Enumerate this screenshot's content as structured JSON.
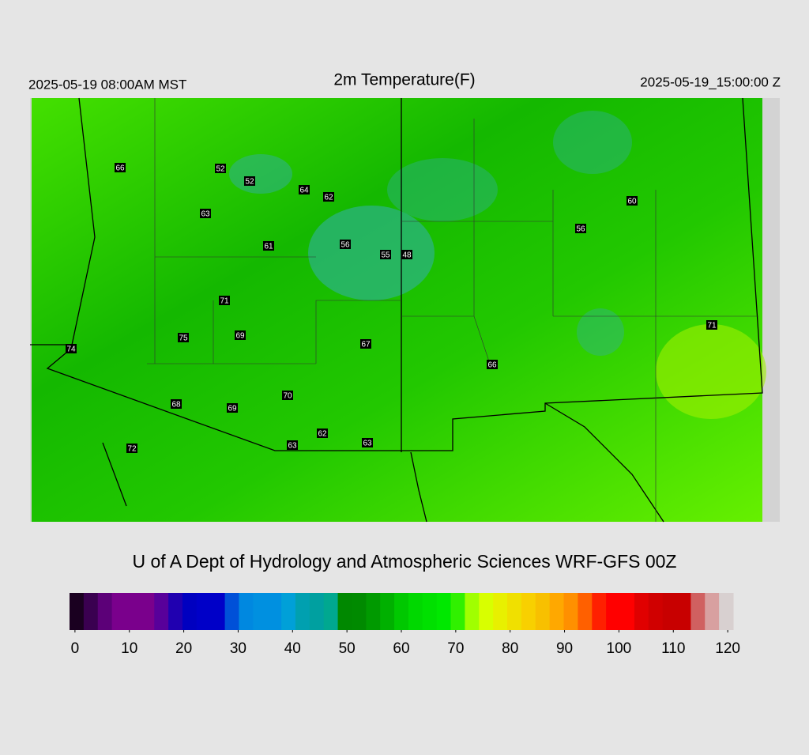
{
  "header": {
    "left": "2025-05-19 08:00AM MST",
    "title": "2m Temperature(F)",
    "right": "2025-05-19_15:00:00 Z"
  },
  "stations": [
    66,
    52,
    52,
    64,
    62,
    63,
    61,
    56,
    55,
    48,
    60,
    56,
    71,
    75,
    69,
    67,
    74,
    66,
    71,
    70,
    68,
    69,
    62,
    63,
    63,
    72
  ],
  "footer": "U of A Dept of Hydrology and Atmospheric Sciences WRF-GFS 00Z",
  "colorbar": {
    "lim": [
      -1,
      121
    ],
    "ticks": [
      0,
      10,
      20,
      30,
      40,
      50,
      60,
      70,
      80,
      90,
      100,
      110,
      120
    ],
    "colors": [
      "#1a0020",
      "#3a0050",
      "#5c0078",
      "#7a008c",
      "#7a008c",
      "#7a008c",
      "#58009a",
      "#2000b0",
      "#0000c0",
      "#0000c8",
      "#0000c8",
      "#0050d8",
      "#0088e0",
      "#0090e0",
      "#0090e0",
      "#00a0d8",
      "#00a0b0",
      "#00a0a0",
      "#00a890",
      "#008800",
      "#008a00",
      "#009a00",
      "#00b000",
      "#00c800",
      "#00d800",
      "#00e000",
      "#00e800",
      "#30f000",
      "#a0ff00",
      "#d8ff00",
      "#e8f000",
      "#f0e000",
      "#f8d000",
      "#f8c000",
      "#ffa800",
      "#ff9000",
      "#ff6000",
      "#ff2000",
      "#ff0000",
      "#ff0000",
      "#e00000",
      "#d00000",
      "#c80000",
      "#c80000",
      "#d06060",
      "#d8a0a0",
      "#d8d0d0"
    ]
  }
}
